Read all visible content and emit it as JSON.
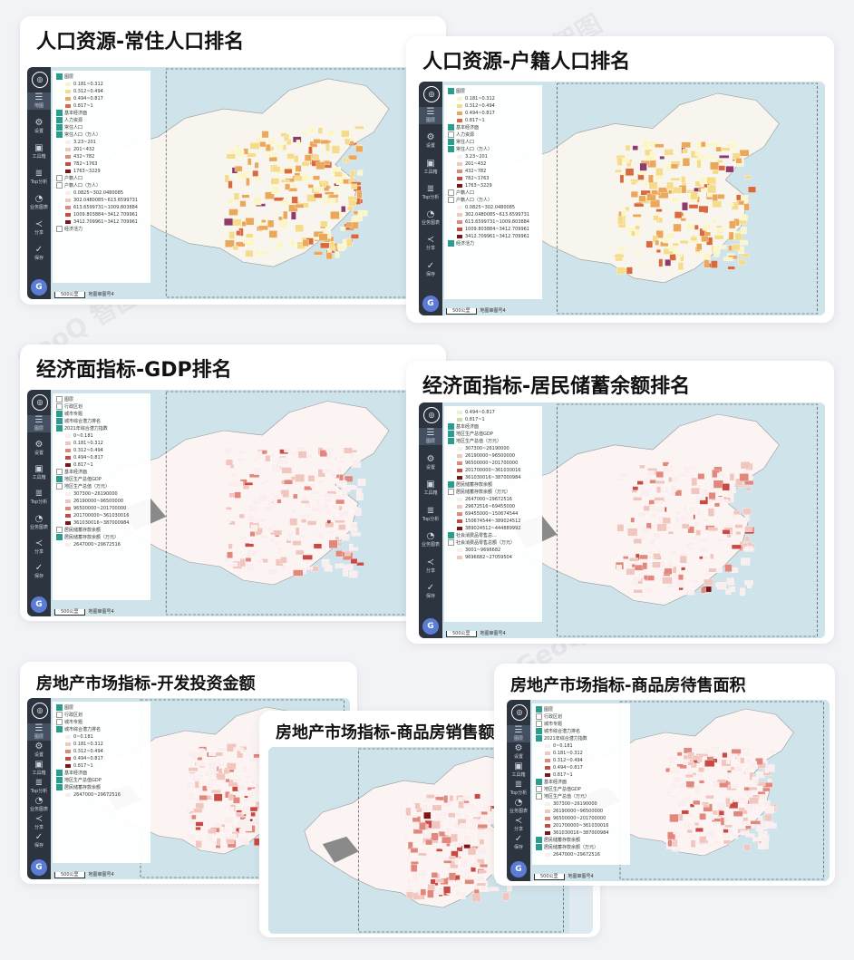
{
  "cards": [
    {
      "title": "人口资源-常住人口排名",
      "layers": [
        "图层",
        "0.181~0.312",
        "0.312~0.494",
        "0.494~0.817",
        "0.817~1",
        "基本经济面",
        "人力资源",
        "常住人口",
        "常住人口（万人）",
        "3.23~201",
        "201~432",
        "432~782",
        "782~1763",
        "1763~3229",
        "户籍人口",
        "户籍人口（万人）",
        "0.0825~302.0480085",
        "302.0480085~613.6599731",
        "613.6599731~1009.803884",
        "1009.803884~3412.709961",
        "3412.709961~3412.709961",
        "经济活力"
      ],
      "sidebar": [
        "地图",
        "设置",
        "工具箱",
        "Top分析",
        "业务图表",
        "分享",
        "保存"
      ]
    },
    {
      "title": "人口资源-户籍人口排名",
      "layers": [
        "图层",
        "0.181~0.312",
        "0.312~0.494",
        "0.494~0.817",
        "0.817~1",
        "基本经济面",
        "人力资源",
        "常住人口",
        "常住人口（万人）",
        "3.23~201",
        "201~432",
        "432~782",
        "782~1763",
        "1763~3229",
        "户籍人口",
        "户籍人口（万人）",
        "0.0825~302.0480085",
        "302.0480085~613.6599731",
        "613.6599731~1009.803884",
        "1009.803884~3412.709961",
        "3412.709961~3412.709961",
        "经济活力"
      ],
      "sidebar": [
        "图层",
        "设置",
        "工具箱",
        "Top分析",
        "业务图表",
        "分享",
        "保存"
      ]
    },
    {
      "title": "经济面指标-GDP排名",
      "layers": [
        "图层",
        "行政区划",
        "城市专题",
        "城市综合潜力排名",
        "2021年综合潜力指数",
        "0~0.181",
        "0.181~0.312",
        "0.312~0.494",
        "0.494~0.817",
        "0.817~1",
        "基本经济面",
        "地区生产总值GDP",
        "地区生产总值（万元）",
        "307300~26190000",
        "26190000~96500000",
        "96500000~201700000",
        "201700000~361030016",
        "361030016~387000984",
        "居民储蓄存款余额",
        "居民储蓄存款余额（万元）",
        "2647000~29672516"
      ],
      "sidebar": [
        "图层",
        "设置",
        "工具箱",
        "Top分析",
        "业务图表",
        "分享",
        "保存"
      ]
    },
    {
      "title": "经济面指标-居民储蓄余额排名",
      "layers": [
        "0.494~0.817",
        "0.817~1",
        "基本经济面",
        "地区生产总值GDP",
        "地区生产总值（万元）",
        "307300~26190000",
        "26190000~96500000",
        "96500000~201700000",
        "201700000~361030016",
        "361030016~387000984",
        "居民储蓄存款余额",
        "居民储蓄存款余额（万元）",
        "2647000~29672516",
        "29672516~69455000",
        "69455000~150674544",
        "150674544~389024512",
        "389024512~444889992",
        "社会消费品零售总…",
        "社会消费品零售总额（万元）",
        "3001~9696682",
        "9696682~27059504"
      ],
      "sidebar": [
        "图层",
        "设置",
        "工具箱",
        "Top分析",
        "业务图表",
        "分享",
        "保存"
      ]
    },
    {
      "title": "房地产市场指标-开发投资金额",
      "layers": [
        "图层",
        "行政区划",
        "城市专题",
        "城市综合潜力排名",
        "0~0.181",
        "0.181~0.312",
        "0.312~0.494",
        "0.494~0.817",
        "0.817~1",
        "基本经济面",
        "地区生产总值GDP",
        "居民储蓄存款余额",
        "2647000~29672516"
      ],
      "sidebar": [
        "图层",
        "设置",
        "工具箱",
        "Top分析",
        "业务图表",
        "分享",
        "保存"
      ]
    },
    {
      "title": "房地产市场指标-商品房待售面积",
      "layers": [
        "图层",
        "行政区划",
        "城市专题",
        "城市综合潜力排名",
        "2021年综合潜力指数",
        "0~0.181",
        "0.181~0.312",
        "0.312~0.494",
        "0.494~0.817",
        "0.817~1",
        "基本经济面",
        "地区生产总值GDP",
        "地区生产总值（万元）",
        "307300~26190000",
        "26190000~96500000",
        "96500000~201700000",
        "201700000~361030016",
        "361030016~387000984",
        "居民储蓄存款余额",
        "居民储蓄存款余额（万元）",
        "2647000~29672516"
      ],
      "sidebar": [
        "图层",
        "设置",
        "工具箱",
        "Top分析",
        "业务图表",
        "分享",
        "保存"
      ]
    },
    {
      "title": "房地产市场指标-商品房销售额",
      "layers": [],
      "sidebar": []
    }
  ],
  "scale": "500公里",
  "provider": "地图审图号4",
  "avatar_letter": "G",
  "watermark": "GeoQ 智图",
  "colors": {
    "pop_ramp": [
      "#fbf6c9",
      "#f5dc8a",
      "#eba85a",
      "#d86a3e",
      "#8e3b6b"
    ],
    "gdp_ramp": [
      "#fbeeee",
      "#f1c6bf",
      "#e2877c",
      "#c94a43",
      "#7f1418"
    ],
    "potential_ramp": [
      "#e8f0d8",
      "#c7dca0",
      "#97bf6a",
      "#6b9944",
      "#3e6b2a"
    ]
  }
}
